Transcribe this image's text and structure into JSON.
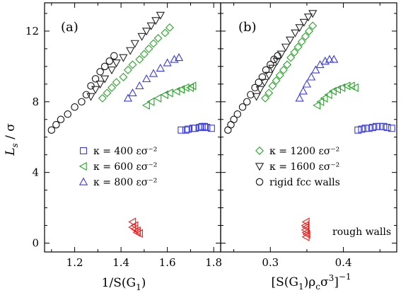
{
  "chart_data": {
    "type": "scatter",
    "ylabel_parts": {
      "main": "L",
      "sub": "s",
      "rest": " / σ"
    },
    "ylim": [
      -0.5,
      13.6
    ],
    "yticks": [
      0,
      4,
      8,
      12
    ],
    "ytick_labels": [
      "0",
      "4",
      "8",
      "12"
    ],
    "colors": {
      "k400": "#3a3ae0",
      "k600": "#28a428",
      "k800": "#3a3ae0",
      "k1200": "#28a428",
      "k1600": "#222222",
      "rigid": "#111111",
      "rough": "#e82020"
    },
    "panels": [
      {
        "label": "(a)",
        "xlabel_parts": {
          "pre": "1/S(G",
          "sub": "1",
          "post": ")"
        },
        "xlim": [
          1.07,
          1.83
        ],
        "xticks": [
          1.2,
          1.4,
          1.6,
          1.8
        ],
        "xtick_labels": [
          "1.2",
          "1.4",
          "1.6",
          "1.8"
        ],
        "legend": [
          {
            "key": "k400",
            "marker": "square",
            "text": "κ = 400 εσ⁻²"
          },
          {
            "key": "k600",
            "marker": "triangle-left",
            "text": "κ = 600 εσ⁻²"
          },
          {
            "key": "k800",
            "marker": "triangle-up",
            "text": "κ = 800 εσ⁻²"
          }
        ],
        "annotation": "",
        "series": [
          {
            "key": "rigid",
            "marker": "circle",
            "points": [
              [
                1.1,
                6.4
              ],
              [
                1.12,
                6.7
              ],
              [
                1.14,
                7.0
              ],
              [
                1.17,
                7.3
              ],
              [
                1.2,
                7.7
              ],
              [
                1.23,
                8.0
              ],
              [
                1.25,
                8.4
              ],
              [
                1.27,
                8.9
              ],
              [
                1.29,
                9.3
              ],
              [
                1.31,
                9.7
              ],
              [
                1.33,
                10.0
              ],
              [
                1.35,
                10.3
              ],
              [
                1.37,
                10.6
              ]
            ]
          },
          {
            "key": "k1600",
            "marker": "triangle-down",
            "points": [
              [
                1.27,
                8.3
              ],
              [
                1.29,
                8.7
              ],
              [
                1.31,
                9.0
              ],
              [
                1.33,
                9.3
              ],
              [
                1.36,
                9.8
              ],
              [
                1.38,
                10.2
              ],
              [
                1.41,
                10.5
              ],
              [
                1.44,
                10.9
              ],
              [
                1.46,
                11.3
              ],
              [
                1.49,
                11.7
              ],
              [
                1.51,
                12.0
              ],
              [
                1.53,
                12.3
              ],
              [
                1.55,
                12.6
              ],
              [
                1.57,
                12.9
              ]
            ]
          },
          {
            "key": "k1200",
            "marker": "diamond",
            "points": [
              [
                1.32,
                8.2
              ],
              [
                1.34,
                8.5
              ],
              [
                1.36,
                8.8
              ],
              [
                1.38,
                9.1
              ],
              [
                1.41,
                9.4
              ],
              [
                1.43,
                9.8
              ],
              [
                1.45,
                10.1
              ],
              [
                1.48,
                10.4
              ],
              [
                1.5,
                10.7
              ],
              [
                1.52,
                11.0
              ],
              [
                1.54,
                11.3
              ],
              [
                1.56,
                11.6
              ],
              [
                1.59,
                11.9
              ],
              [
                1.61,
                12.2
              ]
            ]
          },
          {
            "key": "k800",
            "marker": "triangle-up",
            "points": [
              [
                1.43,
                8.2
              ],
              [
                1.45,
                8.5
              ],
              [
                1.48,
                8.9
              ],
              [
                1.51,
                9.3
              ],
              [
                1.54,
                9.6
              ],
              [
                1.57,
                9.9
              ],
              [
                1.6,
                10.2
              ],
              [
                1.63,
                10.4
              ],
              [
                1.65,
                10.5
              ]
            ]
          },
          {
            "key": "k600",
            "marker": "triangle-left",
            "points": [
              [
                1.51,
                7.8
              ],
              [
                1.53,
                8.0
              ],
              [
                1.56,
                8.2
              ],
              [
                1.59,
                8.4
              ],
              [
                1.61,
                8.5
              ],
              [
                1.64,
                8.6
              ],
              [
                1.66,
                8.7
              ],
              [
                1.68,
                8.8
              ],
              [
                1.7,
                8.8
              ],
              [
                1.71,
                8.9
              ]
            ]
          },
          {
            "key": "k400",
            "marker": "square",
            "points": [
              [
                1.66,
                6.4
              ],
              [
                1.68,
                6.4
              ],
              [
                1.69,
                6.45
              ],
              [
                1.71,
                6.5
              ],
              [
                1.72,
                6.5
              ],
              [
                1.74,
                6.55
              ],
              [
                1.75,
                6.6
              ],
              [
                1.76,
                6.6
              ],
              [
                1.77,
                6.55
              ],
              [
                1.79,
                6.5
              ]
            ]
          },
          {
            "key": "rough",
            "marker": "triangle-left",
            "points": [
              [
                1.45,
                1.2
              ],
              [
                1.46,
                1.0
              ],
              [
                1.45,
                0.9
              ],
              [
                1.46,
                0.8
              ],
              [
                1.47,
                0.7
              ],
              [
                1.47,
                0.6
              ],
              [
                1.48,
                0.55
              ]
            ]
          }
        ]
      },
      {
        "label": "(b)",
        "xlabel_parts": {
          "pre": "[S(G",
          "sub1": "1",
          "mid": ")ρ",
          "sub2": "c",
          "mid2": "σ",
          "sup1": "3",
          "post": "]",
          "sup2": "−1"
        },
        "xlim": [
          0.232,
          0.473
        ],
        "xticks": [
          0.3,
          0.4
        ],
        "xtick_labels": [
          "0.3",
          "0.4"
        ],
        "legend": [
          {
            "key": "k1200",
            "marker": "diamond",
            "text": "κ = 1200 εσ⁻²"
          },
          {
            "key": "k1600",
            "marker": "triangle-down",
            "text": "κ = 1600 εσ⁻²"
          },
          {
            "key": "rigid",
            "marker": "circle",
            "text": "rigid fcc walls"
          }
        ],
        "annotation": "rough walls",
        "series": [
          {
            "key": "rigid",
            "marker": "circle",
            "points": [
              [
                0.242,
                6.4
              ],
              [
                0.246,
                6.7
              ],
              [
                0.25,
                7.0
              ],
              [
                0.255,
                7.3
              ],
              [
                0.262,
                7.7
              ],
              [
                0.268,
                8.0
              ],
              [
                0.273,
                8.4
              ],
              [
                0.279,
                8.8
              ],
              [
                0.284,
                9.1
              ],
              [
                0.289,
                9.4
              ],
              [
                0.294,
                9.8
              ],
              [
                0.3,
                10.1
              ],
              [
                0.305,
                10.4
              ],
              [
                0.31,
                10.6
              ]
            ]
          },
          {
            "key": "k1600",
            "marker": "triangle-down",
            "points": [
              [
                0.281,
                8.3
              ],
              [
                0.286,
                8.7
              ],
              [
                0.292,
                9.1
              ],
              [
                0.298,
                9.5
              ],
              [
                0.303,
                9.9
              ],
              [
                0.309,
                10.3
              ],
              [
                0.315,
                10.7
              ],
              [
                0.321,
                11.1
              ],
              [
                0.327,
                11.5
              ],
              [
                0.334,
                11.9
              ],
              [
                0.34,
                12.2
              ],
              [
                0.346,
                12.5
              ],
              [
                0.352,
                12.8
              ],
              [
                0.358,
                13.0
              ]
            ]
          },
          {
            "key": "k1200",
            "marker": "diamond",
            "points": [
              [
                0.293,
                8.2
              ],
              [
                0.298,
                8.5
              ],
              [
                0.303,
                8.9
              ],
              [
                0.308,
                9.2
              ],
              [
                0.313,
                9.5
              ],
              [
                0.318,
                9.8
              ],
              [
                0.323,
                10.1
              ],
              [
                0.328,
                10.5
              ],
              [
                0.333,
                10.8
              ],
              [
                0.338,
                11.1
              ],
              [
                0.343,
                11.4
              ],
              [
                0.348,
                11.7
              ],
              [
                0.353,
                12.0
              ],
              [
                0.358,
                12.3
              ]
            ]
          },
          {
            "key": "k800",
            "marker": "triangle-up",
            "points": [
              [
                0.34,
                8.2
              ],
              [
                0.345,
                8.6
              ],
              [
                0.35,
                9.0
              ],
              [
                0.356,
                9.4
              ],
              [
                0.362,
                9.8
              ],
              [
                0.368,
                10.1
              ],
              [
                0.375,
                10.3
              ],
              [
                0.381,
                10.4
              ],
              [
                0.387,
                10.4
              ]
            ]
          },
          {
            "key": "k600",
            "marker": "triangle-left",
            "points": [
              [
                0.364,
                7.8
              ],
              [
                0.369,
                8.0
              ],
              [
                0.374,
                8.2
              ],
              [
                0.38,
                8.4
              ],
              [
                0.386,
                8.6
              ],
              [
                0.392,
                8.7
              ],
              [
                0.398,
                8.8
              ],
              [
                0.405,
                8.9
              ],
              [
                0.411,
                8.9
              ],
              [
                0.416,
                8.8
              ]
            ]
          },
          {
            "key": "k400",
            "marker": "square",
            "points": [
              [
                0.42,
                6.4
              ],
              [
                0.425,
                6.45
              ],
              [
                0.43,
                6.5
              ],
              [
                0.435,
                6.5
              ],
              [
                0.44,
                6.55
              ],
              [
                0.445,
                6.6
              ],
              [
                0.45,
                6.6
              ],
              [
                0.455,
                6.6
              ],
              [
                0.46,
                6.55
              ],
              [
                0.466,
                6.5
              ]
            ]
          },
          {
            "key": "rough",
            "marker": "triangle-left",
            "points": [
              [
                0.349,
                1.2
              ],
              [
                0.348,
                1.0
              ],
              [
                0.349,
                0.9
              ],
              [
                0.348,
                0.75
              ],
              [
                0.349,
                0.6
              ],
              [
                0.35,
                0.5
              ],
              [
                0.349,
                0.35
              ]
            ]
          }
        ]
      }
    ]
  }
}
